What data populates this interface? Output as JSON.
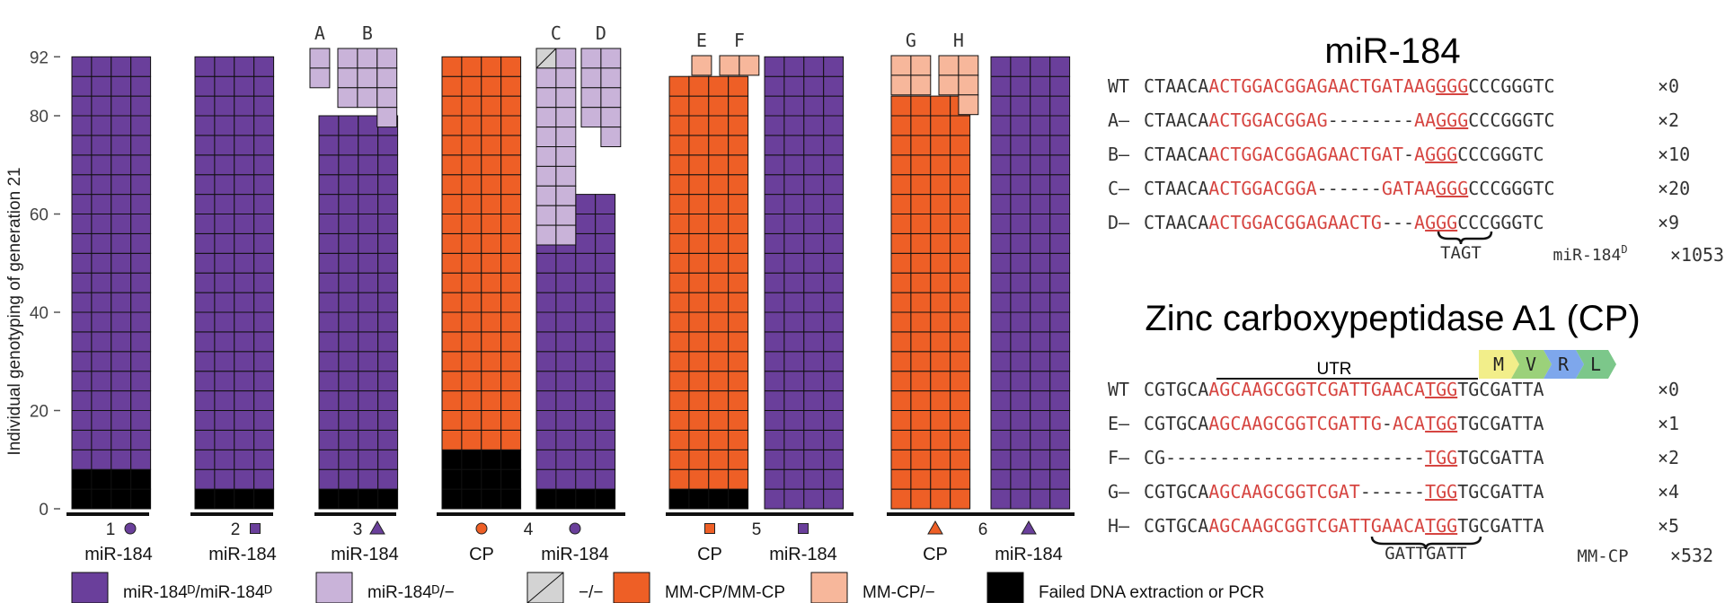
{
  "chart_data": {
    "type": "waffle",
    "ylabel": "Individual genotyping of generation 21",
    "yticks": [
      0,
      20,
      40,
      60,
      80,
      92
    ],
    "colors": {
      "mirD_mirD": "#6a3f9b",
      "mirD_minus": "#c9b3d9",
      "minus_minus": "#d3d3d3",
      "mmcp_mmcp": "#ee5f26",
      "mmcp_minus": "#f7b79b",
      "failed": "#000000",
      "red": "#d64541"
    },
    "columns": [
      {
        "id": "1-mir",
        "main_total": 92,
        "failed": 8,
        "gene": "mir",
        "upper": []
      },
      {
        "id": "2-mir",
        "main_total": 92,
        "failed": 4,
        "gene": "mir",
        "upper": []
      },
      {
        "id": "3-mir",
        "main_total": 80,
        "failed": 4,
        "gene": "mir",
        "upper": [
          {
            "label": "A",
            "count": 2,
            "cols": 1,
            "state": "mirD_minus"
          },
          {
            "label": "B",
            "count": 10,
            "cols": 3,
            "state": "mirD_minus"
          }
        ]
      },
      {
        "id": "4-cp",
        "main_total": 92,
        "failed": 12,
        "gene": "cp",
        "upper": []
      },
      {
        "id": "4-mir",
        "main_total": 64,
        "failed": 4,
        "gene": "mir",
        "upper": [
          {
            "label": "C",
            "count": 20,
            "cols": 2,
            "state": "mirD_minus",
            "first_minus": true
          },
          {
            "label": "D",
            "count": 9,
            "cols": 2,
            "state": "mirD_minus"
          }
        ]
      },
      {
        "id": "5-cp",
        "main_total": 88,
        "failed": 4,
        "gene": "cp",
        "upper": [
          {
            "label": "E",
            "count": 1,
            "cols": 1,
            "state": "mmcp_minus"
          },
          {
            "label": "F",
            "count": 2,
            "cols": 2,
            "state": "mmcp_minus"
          }
        ]
      },
      {
        "id": "5-mir",
        "main_total": 92,
        "failed": 0,
        "gene": "mir",
        "upper": []
      },
      {
        "id": "6-cp",
        "main_total": 84,
        "failed": 0,
        "gene": "cp",
        "upper": [
          {
            "label": "G",
            "count": 4,
            "cols": 2,
            "state": "mmcp_minus"
          },
          {
            "label": "H",
            "count": 5,
            "cols": 2,
            "state": "mmcp_minus"
          }
        ]
      },
      {
        "id": "6-mir",
        "main_total": 92,
        "failed": 0,
        "gene": "mir",
        "upper": []
      }
    ],
    "groups": [
      {
        "number": "1",
        "labels": [
          {
            "text": "miR-184",
            "marker": "circle",
            "gene": "mir"
          }
        ]
      },
      {
        "number": "2",
        "labels": [
          {
            "text": "miR-184",
            "marker": "square",
            "gene": "mir"
          }
        ]
      },
      {
        "number": "3",
        "labels": [
          {
            "text": "miR-184",
            "marker": "triangle",
            "gene": "mir"
          }
        ]
      },
      {
        "number": "4",
        "labels": [
          {
            "text": "CP",
            "marker": "circle",
            "gene": "cp"
          },
          {
            "text": "miR-184",
            "marker": "circle",
            "gene": "mir"
          }
        ]
      },
      {
        "number": "5",
        "labels": [
          {
            "text": "CP",
            "marker": "square",
            "gene": "cp"
          },
          {
            "text": "miR-184",
            "marker": "square",
            "gene": "mir"
          }
        ]
      },
      {
        "number": "6",
        "labels": [
          {
            "text": "CP",
            "marker": "triangle",
            "gene": "cp"
          },
          {
            "text": "miR-184",
            "marker": "triangle",
            "gene": "mir"
          }
        ]
      }
    ],
    "legend": [
      {
        "state": "mirD_mirD",
        "text": "miR-184ᴰ/miR-184ᴰ"
      },
      {
        "state": "mirD_minus",
        "text": "miR-184ᴰ/−"
      },
      {
        "state": "minus_minus",
        "text": "−/−"
      },
      {
        "state": "mmcp_mmcp",
        "text": "MM-CP/MM-CP"
      },
      {
        "state": "mmcp_minus",
        "text": "MM-CP/−"
      },
      {
        "state": "failed",
        "text": "Failed DNA extraction or PCR"
      }
    ]
  },
  "mir184": {
    "title": "miR-184",
    "rows": [
      {
        "label": "WT",
        "segs": [
          [
            "CTAACA",
            "b"
          ],
          [
            "ACTGGACGGAGAACTGATAAG",
            "r"
          ],
          [
            "GGG",
            "bu"
          ],
          [
            "CCCGGGTC",
            "b"
          ]
        ],
        "count": "×0"
      },
      {
        "label": "A–",
        "segs": [
          [
            "CTAACA",
            "b"
          ],
          [
            "ACTGGACGGAG",
            "r"
          ],
          [
            "--------",
            "b"
          ],
          [
            "AA",
            "r"
          ],
          [
            "GGG",
            "bu"
          ],
          [
            "CCCGGGTC",
            "b"
          ]
        ],
        "count": "×2"
      },
      {
        "label": "B–",
        "segs": [
          [
            "CTAACA",
            "b"
          ],
          [
            "ACTGGACGGAGAACTGAT",
            "r"
          ],
          [
            "-",
            "b"
          ],
          [
            "A",
            "r"
          ],
          [
            "GGG",
            "bu"
          ],
          [
            "CCCGGGTC",
            "b"
          ]
        ],
        "count": "×10"
      },
      {
        "label": "C–",
        "segs": [
          [
            "CTAACA",
            "b"
          ],
          [
            "ACTGGACGGA",
            "r"
          ],
          [
            "------",
            "b"
          ],
          [
            "GATAA",
            "r"
          ],
          [
            "GGG",
            "bu"
          ],
          [
            "CCCGGGTC",
            "b"
          ]
        ],
        "count": "×20"
      },
      {
        "label": "D–",
        "segs": [
          [
            "CTAACA",
            "b"
          ],
          [
            "ACTGGACGGAGAACTG",
            "r"
          ],
          [
            "---",
            "b"
          ],
          [
            "A",
            "r"
          ],
          [
            "GGG",
            "bu"
          ],
          [
            "CCCGGGTC",
            "b"
          ]
        ],
        "count": "×9"
      }
    ],
    "insert": "TAGT",
    "allele_name": "miR-184",
    "allele_sup": "D",
    "allele_count": "×1053"
  },
  "cp": {
    "title": "Zinc carboxypeptidase A1 (CP)",
    "utr_label": "UTR",
    "codons": [
      "M",
      "V",
      "R",
      "L"
    ],
    "rows": [
      {
        "label": "WT",
        "segs": [
          [
            "CGTGCA",
            "b"
          ],
          [
            "AGCAAGCGGTCGATTGAACA",
            "r"
          ],
          [
            "TGG",
            "bu"
          ],
          [
            "TGCGATTA",
            "b"
          ]
        ],
        "count": "×0"
      },
      {
        "label": "E–",
        "segs": [
          [
            "CGTGCA",
            "b"
          ],
          [
            "AGCAAGCGGTCGATTG",
            "r"
          ],
          [
            "-",
            "b"
          ],
          [
            "ACA",
            "r"
          ],
          [
            "TGG",
            "bu"
          ],
          [
            "TGCGATTA",
            "b"
          ]
        ],
        "count": "×1"
      },
      {
        "label": "F–",
        "segs": [
          [
            "CG",
            "b"
          ],
          [
            "------------------------",
            "b"
          ],
          [
            "TGG",
            "bu"
          ],
          [
            "TGCGATTA",
            "b"
          ]
        ],
        "count": "×2"
      },
      {
        "label": "G–",
        "segs": [
          [
            "CGTGCA",
            "b"
          ],
          [
            "AGCAAGCGGTCGAT",
            "r"
          ],
          [
            "------",
            "b"
          ],
          [
            "TGG",
            "bu"
          ],
          [
            "TGCGATTA",
            "b"
          ]
        ],
        "count": "×4"
      },
      {
        "label": "H–",
        "segs": [
          [
            "CGTGCA",
            "b"
          ],
          [
            "AGCAAGCGGTCGATTGAACA",
            "r"
          ],
          [
            "TGG",
            "bu"
          ],
          [
            "TGCGATTA",
            "b"
          ]
        ],
        "count": "×5"
      }
    ],
    "insert": "GATTGATT",
    "allele_name": "MM-CP",
    "allele_count": "×532"
  }
}
